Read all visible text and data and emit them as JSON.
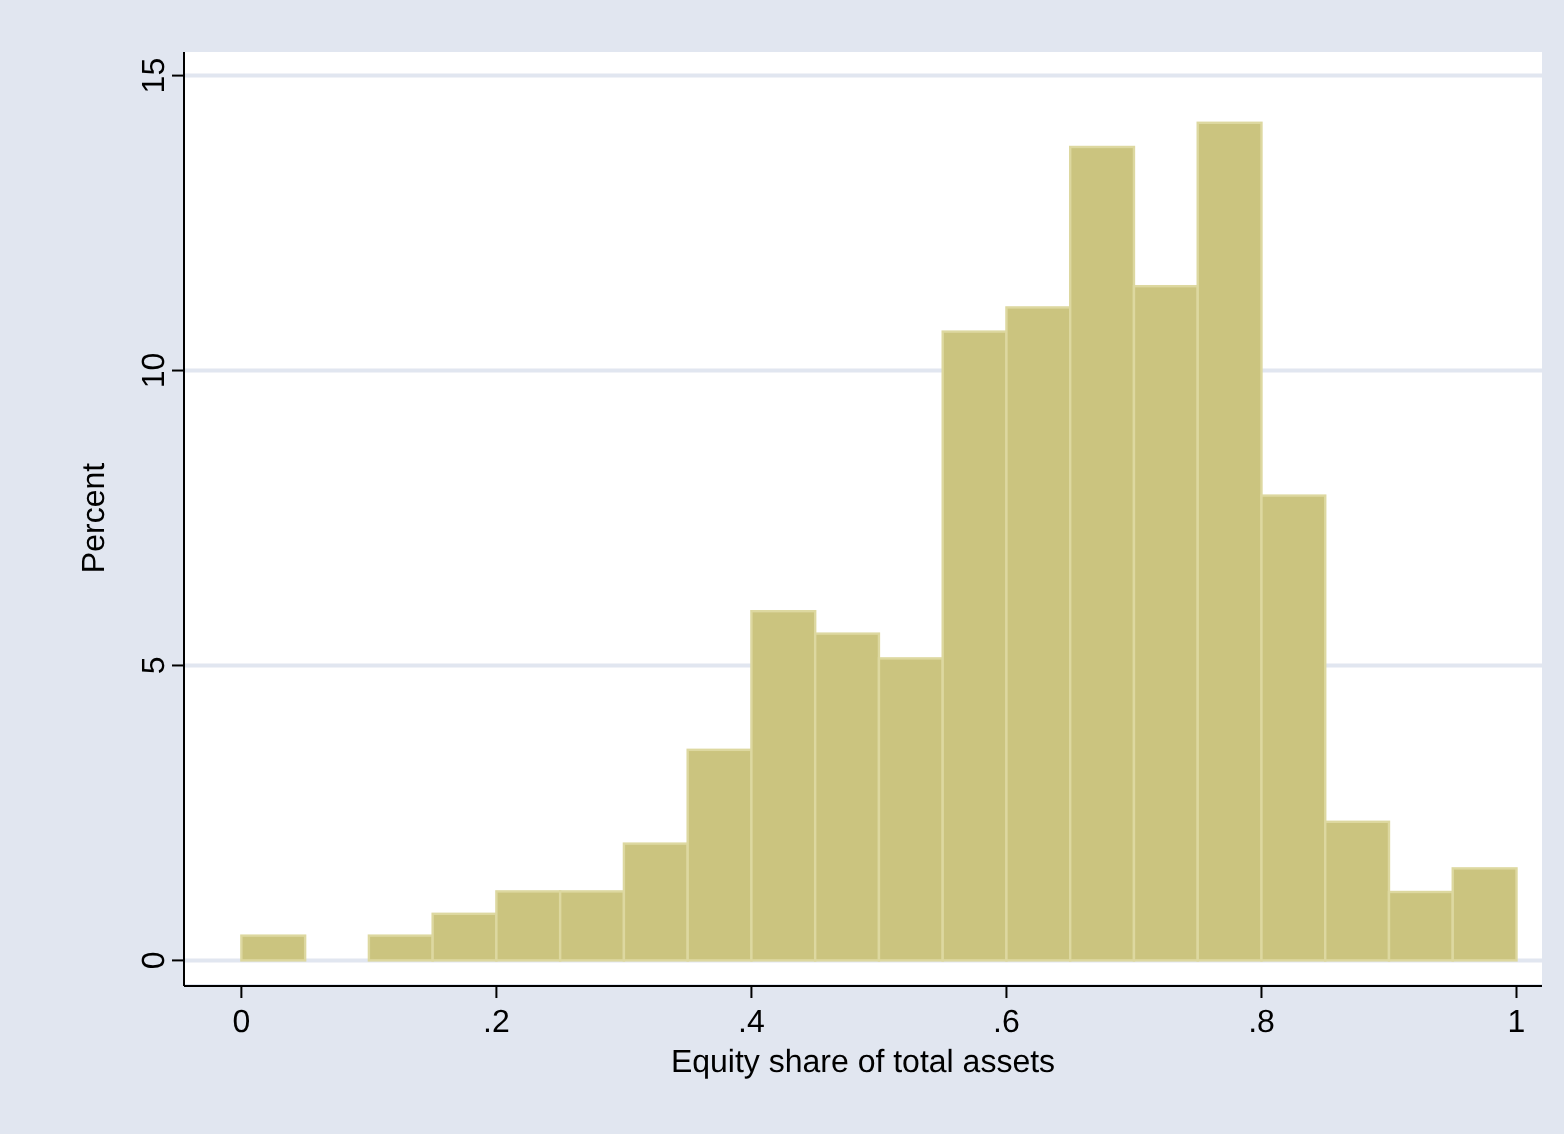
{
  "chart_data": {
    "type": "histogram",
    "xlabel": "Equity share of total assets",
    "ylabel": "Percent",
    "bins": [
      0,
      0.05,
      0.1,
      0.15,
      0.2,
      0.25,
      0.3,
      0.35,
      0.4,
      0.45,
      0.5,
      0.55,
      0.6,
      0.65,
      0.7,
      0.75,
      0.8,
      0.85,
      0.9,
      0.95,
      1
    ],
    "values": [
      0.42,
      0,
      0.42,
      0.79,
      1.17,
      1.17,
      1.98,
      3.57,
      5.92,
      5.54,
      5.12,
      10.66,
      11.07,
      13.79,
      11.43,
      14.2,
      7.88,
      2.35,
      1.16,
      1.56
    ],
    "color": "#cbc47f",
    "xlim": [
      -0.045,
      1.02
    ],
    "ylim": [
      -0.4,
      15.4
    ],
    "xticks": [
      0,
      {
        "value": 0.2,
        "label": ".2"
      },
      {
        "value": 0.4,
        "label": ".4"
      },
      {
        "value": 0.6,
        "label": ".6"
      },
      {
        "value": 0.8,
        "label": ".8"
      },
      1
    ],
    "yticks": [
      0,
      5,
      10,
      15
    ],
    "grid": "y"
  }
}
